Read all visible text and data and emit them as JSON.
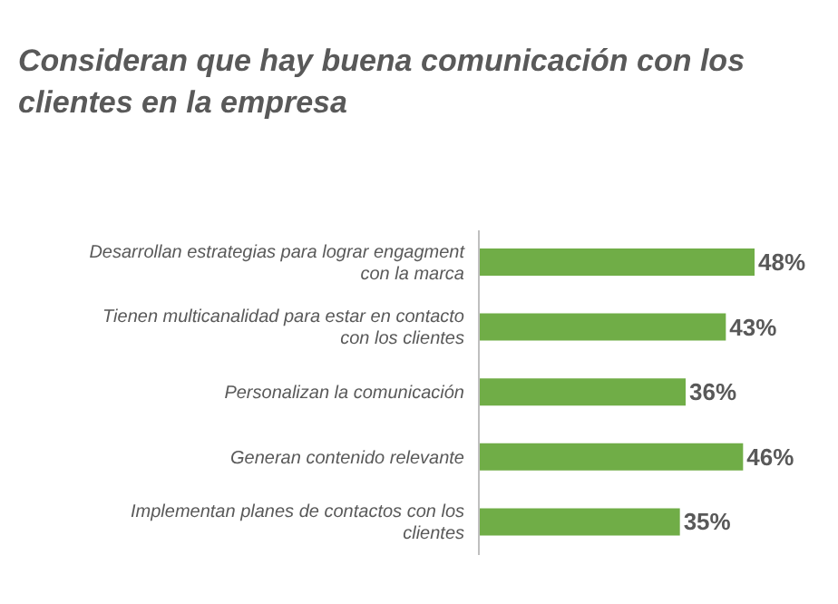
{
  "chart_data": {
    "type": "bar",
    "orientation": "horizontal",
    "title": "Consideran que hay buena comunicación con los clientes en la empresa",
    "categories": [
      "Desarrollan estrategias para lograr engagment con la marca",
      "Tienen multicanalidad para estar en contacto con los clientes",
      "Personalizan la comunicación",
      "Generan contenido relevante",
      "Implementan planes de contactos con los clientes"
    ],
    "values": [
      48,
      43,
      36,
      46,
      35
    ],
    "value_labels": [
      "48%",
      "43%",
      "36%",
      "46%",
      "35%"
    ],
    "color": "#70ad47",
    "grid": false,
    "legend": false
  }
}
